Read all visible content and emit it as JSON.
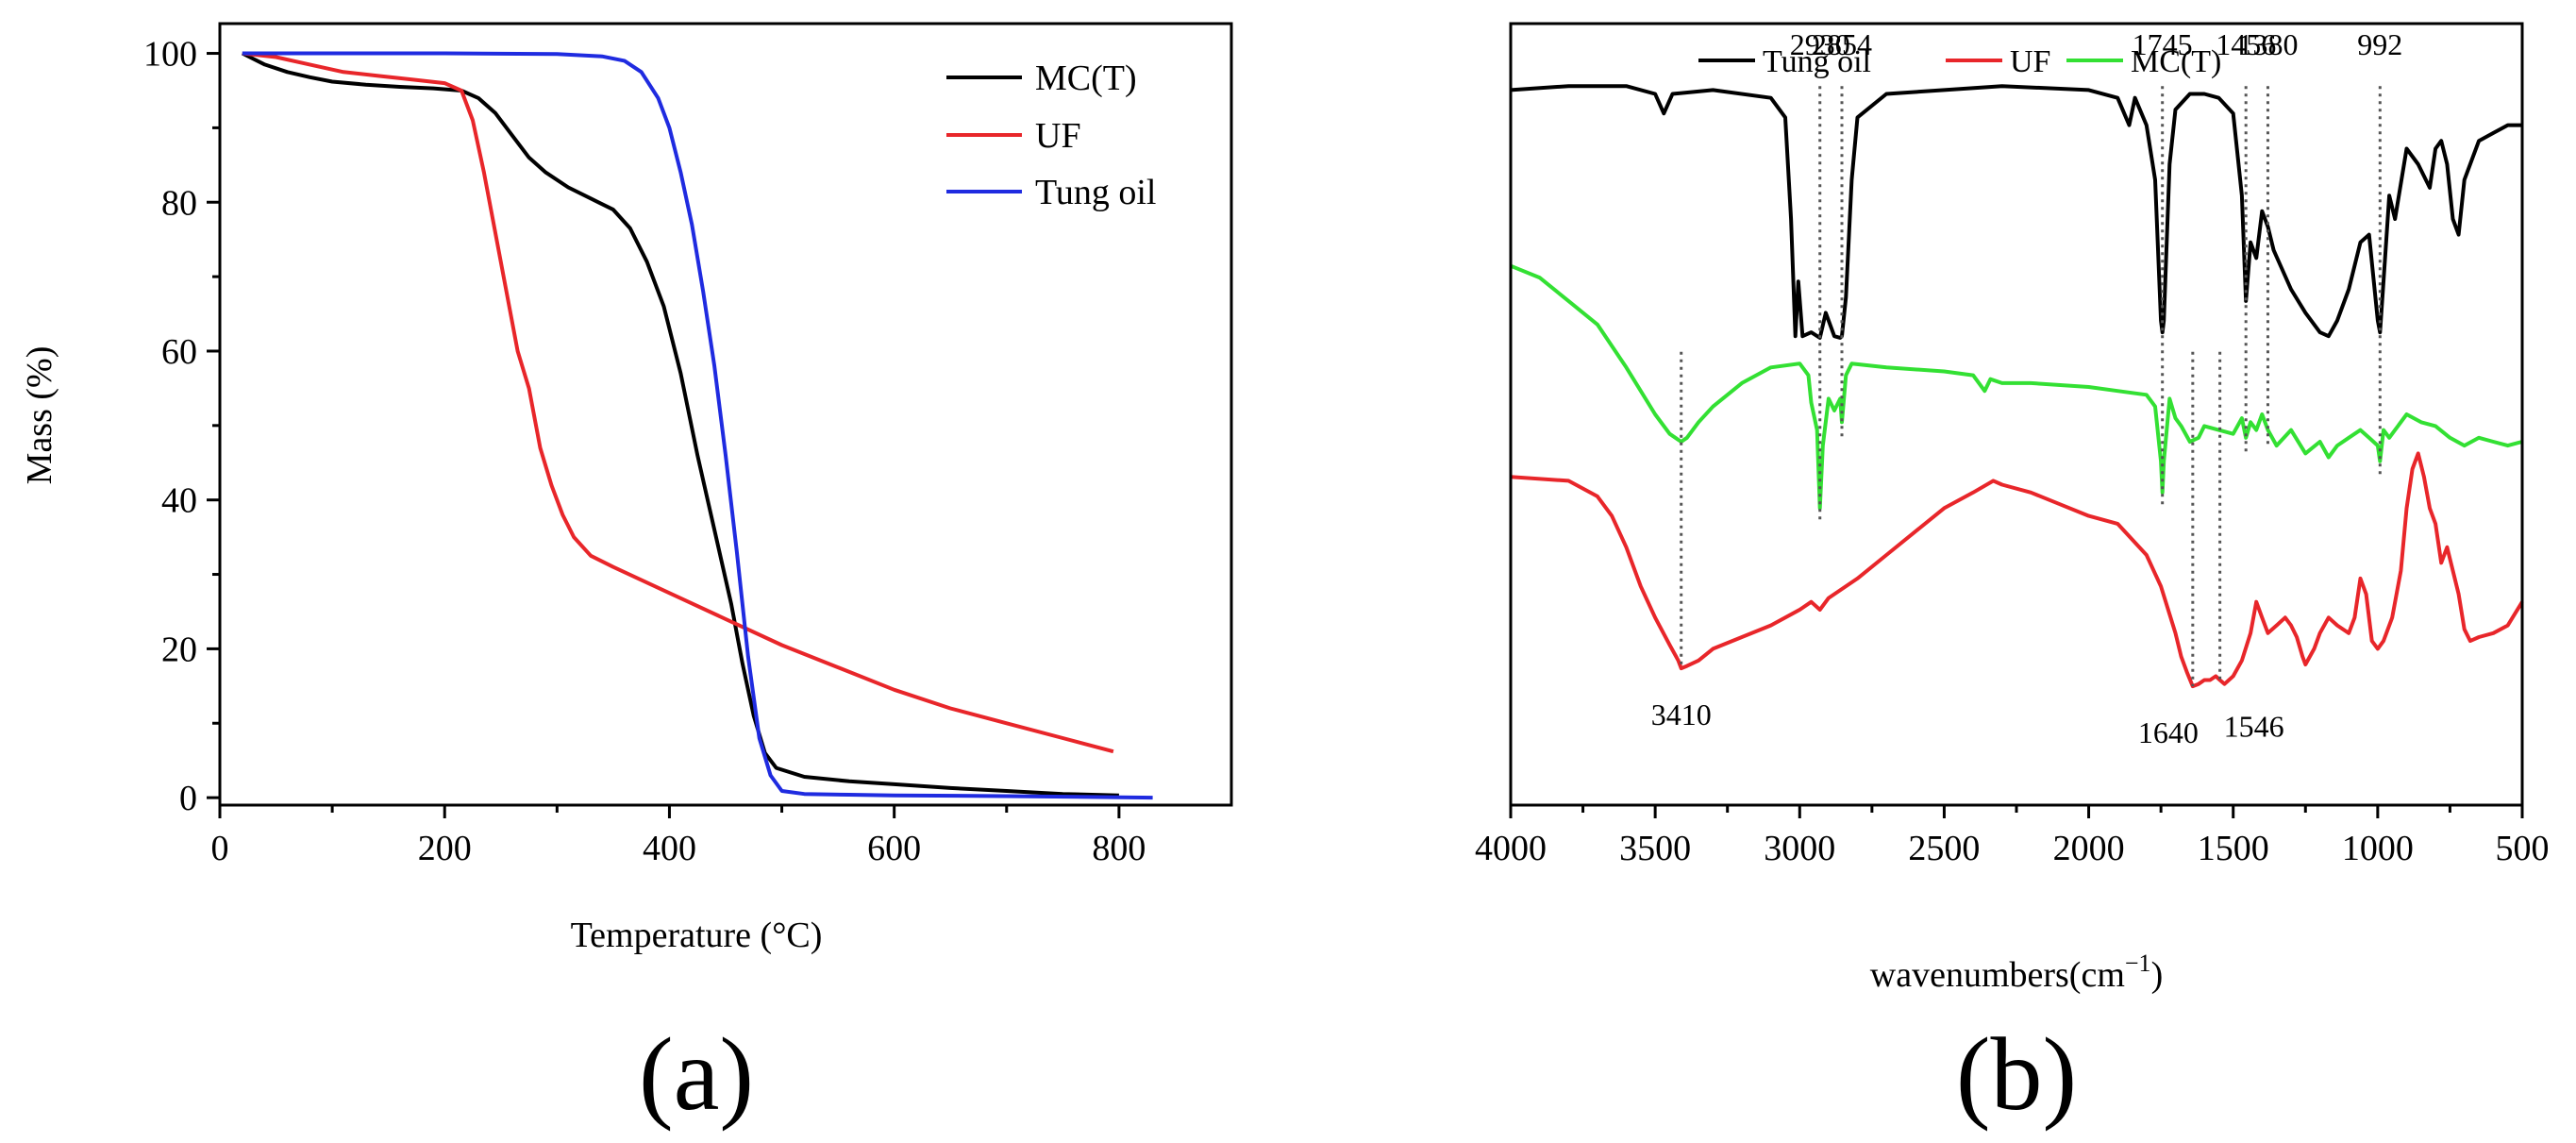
{
  "chart_data": [
    {
      "type": "line",
      "panel_label": "(a)",
      "title": "",
      "xlabel": "Temperature (°C)",
      "ylabel": "Mass (%)",
      "xlim": [
        0,
        900
      ],
      "ylim": [
        -1,
        104
      ],
      "xticks": [
        0,
        200,
        400,
        600,
        800
      ],
      "yticks": [
        0,
        20,
        40,
        60,
        80,
        100
      ],
      "grid": false,
      "legend_position": "top-right",
      "series": [
        {
          "name": "MC(T)",
          "color": "#000000",
          "x": [
            20,
            40,
            60,
            80,
            100,
            130,
            160,
            190,
            215,
            230,
            245,
            260,
            275,
            290,
            310,
            330,
            350,
            365,
            380,
            395,
            410,
            425,
            440,
            455,
            465,
            475,
            485,
            495,
            520,
            560,
            600,
            650,
            700,
            750,
            800
          ],
          "y": [
            100,
            98.5,
            97.5,
            96.8,
            96.2,
            95.8,
            95.5,
            95.3,
            95,
            94,
            92,
            89,
            86,
            84,
            82,
            80.5,
            79,
            76.5,
            72,
            66,
            57,
            46,
            36,
            26,
            18,
            11,
            6,
            4,
            2.8,
            2.2,
            1.8,
            1.3,
            0.9,
            0.5,
            0.3
          ]
        },
        {
          "name": "UF",
          "color": "#e8262a",
          "x": [
            20,
            50,
            80,
            110,
            140,
            170,
            200,
            215,
            225,
            235,
            245,
            255,
            265,
            275,
            285,
            295,
            305,
            315,
            330,
            350,
            400,
            450,
            500,
            550,
            600,
            650,
            700,
            750,
            795
          ],
          "y": [
            100,
            99.5,
            98.5,
            97.5,
            97,
            96.5,
            96,
            95,
            91,
            84,
            76,
            68,
            60,
            55,
            47,
            42,
            38,
            35,
            32.5,
            31,
            27.5,
            24,
            20.5,
            17.5,
            14.5,
            12,
            10,
            8,
            6.2
          ]
        },
        {
          "name": "Tung oil",
          "color": "#1f2be0",
          "x": [
            20,
            100,
            200,
            300,
            340,
            360,
            375,
            390,
            400,
            410,
            420,
            430,
            440,
            450,
            460,
            470,
            480,
            490,
            500,
            520,
            560,
            600,
            700,
            830
          ],
          "y": [
            100,
            100,
            100,
            99.9,
            99.6,
            99,
            97.5,
            94,
            90,
            84,
            77,
            68,
            58,
            46,
            33,
            19,
            8,
            3,
            0.9,
            0.5,
            0.4,
            0.3,
            0.2,
            0
          ]
        }
      ]
    },
    {
      "type": "line",
      "panel_label": "(b)",
      "title": "",
      "xlabel": "wavenumbers(cm",
      "xlabel_superscript": "−1",
      "xlabel_suffix": ")",
      "ylabel": "",
      "xlim": [
        4000,
        500
      ],
      "ylim": [
        0,
        100
      ],
      "xticks": [
        4000,
        3500,
        3000,
        2500,
        2000,
        1500,
        1000,
        500
      ],
      "yticks": [],
      "grid": false,
      "legend_position": "top-center",
      "series": [
        {
          "name": "Tung oil",
          "color": "#000000",
          "x": [
            4000,
            3800,
            3600,
            3500,
            3470,
            3440,
            3300,
            3100,
            3050,
            3030,
            3015,
            3005,
            2990,
            2960,
            2930,
            2910,
            2880,
            2860,
            2854,
            2840,
            2820,
            2800,
            2700,
            2500,
            2300,
            2000,
            1900,
            1860,
            1840,
            1800,
            1770,
            1750,
            1745,
            1740,
            1720,
            1700,
            1650,
            1600,
            1550,
            1500,
            1470,
            1456,
            1440,
            1420,
            1400,
            1380,
            1360,
            1300,
            1250,
            1200,
            1170,
            1140,
            1100,
            1060,
            1030,
            1000,
            992,
            980,
            960,
            940,
            900,
            860,
            820,
            800,
            780,
            760,
            740,
            720,
            700,
            650,
            600,
            550,
            500
          ],
          "y": [
            91.5,
            92,
            92,
            91,
            88.5,
            91,
            91.5,
            90.5,
            88,
            75,
            60,
            67,
            60,
            60.5,
            59.8,
            63,
            60,
            59.8,
            60,
            65,
            80,
            88,
            91,
            91.5,
            92,
            91.5,
            90.5,
            87,
            90.5,
            87,
            80,
            62,
            60.5,
            62,
            82,
            89,
            91,
            91,
            90.5,
            88.5,
            78,
            64.5,
            72,
            70,
            76,
            74,
            71,
            66,
            63,
            60.5,
            60,
            62,
            66,
            72,
            73,
            62,
            60.5,
            67,
            78,
            75,
            84,
            82,
            79,
            84,
            85,
            82,
            75,
            73,
            80,
            85,
            86,
            87,
            87
          ]
        },
        {
          "name": "UF",
          "color": "#e8262a",
          "x": [
            4000,
            3800,
            3700,
            3650,
            3600,
            3550,
            3500,
            3450,
            3420,
            3410,
            3390,
            3350,
            3300,
            3200,
            3100,
            3000,
            2960,
            2930,
            2900,
            2800,
            2700,
            2600,
            2500,
            2400,
            2330,
            2300,
            2200,
            2100,
            2000,
            1900,
            1800,
            1750,
            1700,
            1680,
            1660,
            1640,
            1620,
            1600,
            1580,
            1560,
            1546,
            1530,
            1500,
            1470,
            1440,
            1420,
            1400,
            1380,
            1350,
            1320,
            1300,
            1280,
            1260,
            1250,
            1220,
            1200,
            1170,
            1140,
            1100,
            1080,
            1060,
            1040,
            1020,
            1000,
            980,
            950,
            920,
            900,
            880,
            860,
            840,
            820,
            800,
            780,
            760,
            740,
            720,
            700,
            680,
            650,
            600,
            550,
            500
          ],
          "y": [
            42,
            41.5,
            39.5,
            37,
            33,
            28,
            24,
            20.5,
            18.5,
            17.5,
            17.8,
            18.5,
            20,
            21.5,
            23,
            25,
            26,
            25,
            26.5,
            29,
            32,
            35,
            38,
            40,
            41.5,
            41,
            40,
            38.5,
            37,
            36,
            32,
            28,
            22,
            19,
            17,
            15.2,
            15.5,
            16,
            16,
            16.5,
            16,
            15.5,
            16.5,
            18.5,
            22,
            26,
            24,
            22,
            23,
            24,
            23,
            21.5,
            19,
            18,
            20,
            22,
            24,
            23,
            22,
            24,
            29,
            27,
            21,
            20,
            21,
            24,
            30,
            38,
            43,
            45,
            42,
            38,
            36,
            31,
            33,
            30,
            27,
            22.5,
            21,
            21.5,
            22,
            23,
            26
          ]
        },
        {
          "name": "MC(T)",
          "color": "#33e033",
          "x": [
            4000,
            3900,
            3800,
            3700,
            3600,
            3500,
            3450,
            3410,
            3390,
            3350,
            3300,
            3200,
            3100,
            3000,
            2970,
            2960,
            2940,
            2930,
            2920,
            2900,
            2880,
            2860,
            2854,
            2840,
            2820,
            2700,
            2500,
            2400,
            2360,
            2340,
            2300,
            2200,
            2000,
            1900,
            1800,
            1770,
            1750,
            1745,
            1740,
            1720,
            1700,
            1680,
            1650,
            1620,
            1600,
            1550,
            1500,
            1470,
            1456,
            1440,
            1420,
            1400,
            1380,
            1350,
            1300,
            1250,
            1200,
            1170,
            1140,
            1100,
            1060,
            1030,
            1000,
            992,
            980,
            960,
            940,
            900,
            850,
            800,
            750,
            700,
            650,
            600,
            550,
            500
          ],
          "y": [
            69,
            67.5,
            64.5,
            61.5,
            56,
            50,
            47.5,
            46.5,
            47,
            49,
            51,
            54,
            56,
            56.5,
            55,
            51.5,
            48,
            38,
            46,
            52,
            50.5,
            52,
            49,
            55,
            56.5,
            56,
            55.5,
            55,
            53,
            54.5,
            54,
            54,
            53.5,
            53,
            52.5,
            51,
            44,
            40,
            44,
            52,
            49.5,
            48.5,
            46.5,
            47,
            48.5,
            48,
            47.5,
            49.5,
            47,
            49,
            48,
            50,
            48,
            46,
            48,
            45,
            46.5,
            44.5,
            46,
            47,
            48,
            47,
            46,
            44,
            48,
            47,
            48,
            50,
            49,
            48.5,
            47,
            46,
            47,
            46.5,
            46,
            46.5
          ]
        }
      ],
      "peak_annotations": [
        {
          "label": "2930",
          "x": 2930,
          "position": "above"
        },
        {
          "label": "2854",
          "x": 2854,
          "position": "above"
        },
        {
          "label": "1745",
          "x": 1745,
          "position": "above"
        },
        {
          "label": "1456",
          "x": 1456,
          "position": "above"
        },
        {
          "label": "1380",
          "x": 1380,
          "position": "above"
        },
        {
          "label": "992",
          "x": 992,
          "position": "above"
        },
        {
          "label": "3410",
          "x": 3410,
          "position": "below"
        },
        {
          "label": "1640",
          "x": 1640,
          "position": "below"
        },
        {
          "label": "1546",
          "x": 1546,
          "position": "below"
        }
      ]
    }
  ]
}
